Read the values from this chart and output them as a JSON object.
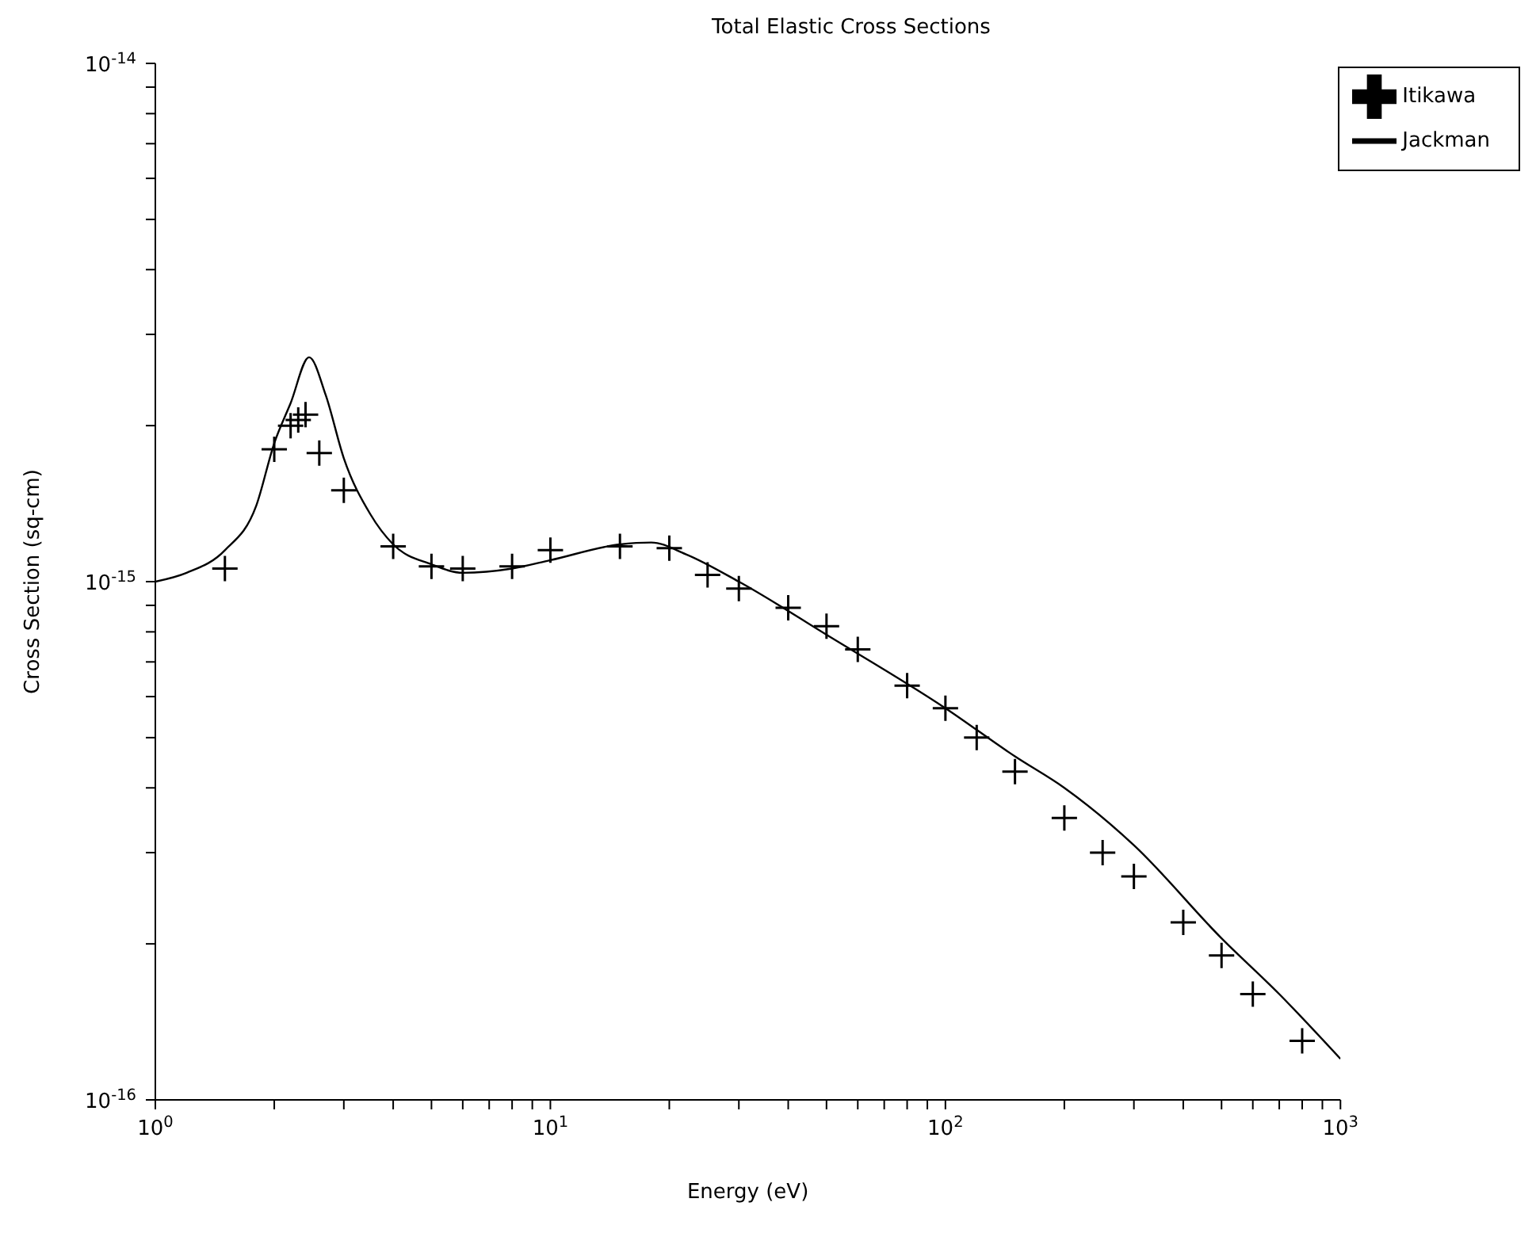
{
  "chart_data": {
    "type": "line",
    "title": "Total Elastic Cross Sections",
    "xlabel": "Energy (eV)",
    "ylabel": "Cross Section (sq-cm)",
    "log": "xy",
    "grid": false,
    "legend": "top right",
    "xlim": [
      1,
      1000
    ],
    "ylim": [
      1e-16,
      1e-14
    ],
    "xticks": [
      {
        "value": 1,
        "label": "10$^{0}$"
      },
      {
        "value": 2,
        "label": null
      },
      {
        "value": 3,
        "label": null
      },
      {
        "value": 4,
        "label": null
      },
      {
        "value": 5,
        "label": null
      },
      {
        "value": 6,
        "label": null
      },
      {
        "value": 7,
        "label": null
      },
      {
        "value": 8,
        "label": null
      },
      {
        "value": 9,
        "label": null
      },
      {
        "value": 10,
        "label": "10$^{1}$"
      },
      {
        "value": 20,
        "label": null
      },
      {
        "value": 30,
        "label": null
      },
      {
        "value": 40,
        "label": null
      },
      {
        "value": 50,
        "label": null
      },
      {
        "value": 60,
        "label": null
      },
      {
        "value": 70,
        "label": null
      },
      {
        "value": 80,
        "label": null
      },
      {
        "value": 90,
        "label": null
      },
      {
        "value": 100,
        "label": "10$^{2}$"
      },
      {
        "value": 200,
        "label": null
      },
      {
        "value": 300,
        "label": null
      },
      {
        "value": 400,
        "label": null
      },
      {
        "value": 500,
        "label": null
      },
      {
        "value": 600,
        "label": null
      },
      {
        "value": 700,
        "label": null
      },
      {
        "value": 800,
        "label": null
      },
      {
        "value": 900,
        "label": null
      },
      {
        "value": 1000,
        "label": "10$^{3}$"
      }
    ],
    "yticks": [
      {
        "value": 1e-16,
        "label": "10$^{-16}$"
      },
      {
        "value": 2e-16,
        "label": null
      },
      {
        "value": 3e-16,
        "label": null
      },
      {
        "value": 4e-16,
        "label": null
      },
      {
        "value": 5e-16,
        "label": null
      },
      {
        "value": 6e-16,
        "label": null
      },
      {
        "value": 7e-16,
        "label": null
      },
      {
        "value": 8e-16,
        "label": null
      },
      {
        "value": 9e-16,
        "label": null
      },
      {
        "value": 1e-15,
        "label": "10$^{-15}$"
      },
      {
        "value": 2e-15,
        "label": null
      },
      {
        "value": 3e-15,
        "label": null
      },
      {
        "value": 4e-15,
        "label": null
      },
      {
        "value": 5e-15,
        "label": null
      },
      {
        "value": 6e-15,
        "label": null
      },
      {
        "value": 7e-15,
        "label": null
      },
      {
        "value": 8e-15,
        "label": null
      },
      {
        "value": 9e-15,
        "label": null
      },
      {
        "value": 1e-14,
        "label": "10$^{-14}$"
      }
    ],
    "series": [
      {
        "name": "Jackman",
        "type": "line",
        "color": "#000000",
        "marker": "none",
        "line_style": "solid",
        "x": [
          1,
          1.2,
          1.5,
          1.8,
          2,
          2.2,
          2.45,
          2.7,
          3,
          3.5,
          4,
          5,
          6,
          8,
          10,
          15,
          18,
          22,
          30,
          50,
          100,
          150,
          200,
          300,
          500,
          700,
          1000
        ],
        "values": [
          1e-15,
          1.04e-15,
          1.15e-15,
          1.4e-15,
          1.85e-15,
          2.21e-15,
          2.71e-15,
          2.29e-15,
          1.73e-15,
          1.35e-15,
          1.18e-15,
          1.08e-15,
          1.04e-15,
          1.06e-15,
          1.1e-15,
          1.18e-15,
          1.19e-15,
          1.13e-15,
          1e-15,
          7.9e-16,
          5.7e-16,
          4.6e-16,
          4e-16,
          3.1e-16,
          2.05e-16,
          1.6e-16,
          1.2e-16
        ]
      },
      {
        "name": "Itikawa",
        "type": "scatter",
        "color": "#000000",
        "marker": "cross",
        "x": [
          1.5,
          2,
          2.2,
          2.3,
          2.4,
          2.6,
          3,
          4,
          5,
          6,
          8,
          10,
          15,
          20,
          25,
          30,
          40,
          50,
          60,
          80,
          100,
          120,
          150,
          200,
          250,
          300,
          400,
          500,
          600,
          800
        ],
        "values": [
          1.06e-15,
          1.8e-15,
          2e-15,
          2.05e-15,
          2.1e-15,
          1.77e-15,
          1.5e-15,
          1.17e-15,
          1.07e-15,
          1.06e-15,
          1.07e-15,
          1.15e-15,
          1.17e-15,
          1.16e-15,
          1.03e-15,
          9.7e-16,
          8.9e-16,
          8.2e-16,
          7.4e-16,
          6.3e-16,
          5.7e-16,
          5e-16,
          4.3e-16,
          3.5e-16,
          3e-16,
          2.7e-16,
          2.2e-16,
          1.9e-16,
          1.6e-16,
          1.3e-16
        ]
      }
    ]
  }
}
